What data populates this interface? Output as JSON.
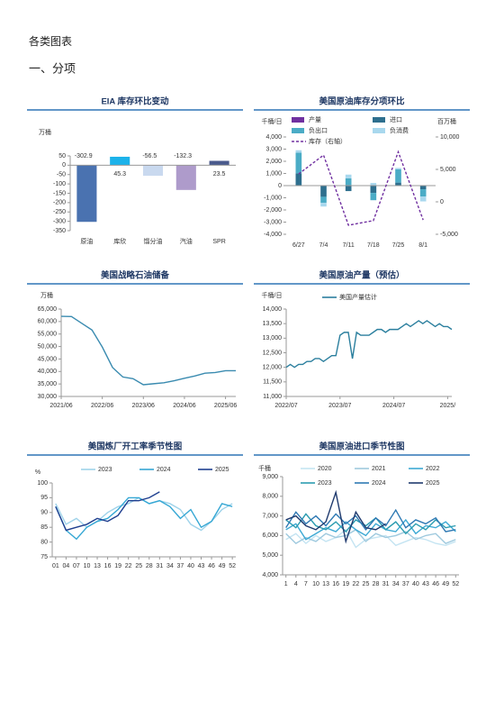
{
  "header": {
    "title": "各类图表",
    "section": "一、分项"
  },
  "chart_data": [
    {
      "type": "bar",
      "title": "EIA 库存环比变动",
      "y_label": "万桶",
      "categories": [
        "原油",
        "库欣",
        "馏分油",
        "汽油",
        "SPR"
      ],
      "values": [
        -302.9,
        45.3,
        -56.5,
        -132.3,
        23.5
      ],
      "colors": [
        "#4a72b0",
        "#1cb2ea",
        "#c9d9ef",
        "#ae9bcb",
        "#4a5a8c"
      ],
      "ylim": [
        -350,
        50
      ],
      "yticks": [
        -350,
        -300,
        -250,
        -200,
        -150,
        -100,
        -50,
        0,
        50
      ]
    },
    {
      "type": "combo",
      "title": "美国原油库存分项环比",
      "y_label": "千桶/日",
      "y2_label": "百万桶",
      "categories": [
        "6/27",
        "7/4",
        "7/11",
        "7/18",
        "7/25",
        "8/1"
      ],
      "series": [
        {
          "name": "产量",
          "type": "bar",
          "color": "#7030a0",
          "values": [
            10,
            -20,
            5,
            15,
            -10,
            20
          ]
        },
        {
          "name": "进口",
          "type": "bar",
          "color": "#2e6f8e",
          "values": [
            1000,
            -900,
            -450,
            -600,
            250,
            -300
          ]
        },
        {
          "name": "负出口",
          "type": "bar",
          "color": "#4bacc6",
          "values": [
            1700,
            -500,
            600,
            -600,
            1100,
            -600
          ]
        },
        {
          "name": "负消费",
          "type": "bar",
          "color": "#a9d8ee",
          "values": [
            200,
            -300,
            300,
            200,
            100,
            -400
          ]
        },
        {
          "name": "库存（右轴）",
          "type": "line",
          "linestyle": "dashed",
          "axis": "y2",
          "color": "#7030a0",
          "values": [
            4300,
            7200,
            -3600,
            -2900,
            7700,
            -2800
          ]
        }
      ],
      "ylim": [
        -4000,
        4000
      ],
      "yticks": [
        {
          "value": -4000,
          "label": "-4,000"
        },
        {
          "value": -3000,
          "label": "-3,000"
        },
        {
          "value": -2000,
          "label": "-2,000"
        },
        {
          "value": -1000,
          "label": "-1,000"
        },
        0,
        {
          "value": 1000,
          "label": "1,000"
        },
        {
          "value": 2000,
          "label": "2,000"
        },
        {
          "value": 3000,
          "label": "3,000"
        },
        {
          "value": 4000,
          "label": "4,000"
        }
      ],
      "y2lim": [
        -5000,
        10000
      ],
      "y2ticks": [
        {
          "value": -5000,
          "label": "-5,000"
        },
        0,
        {
          "value": 5000,
          "label": "5,000"
        },
        {
          "value": 10000,
          "label": "10,000"
        }
      ]
    },
    {
      "type": "line",
      "title": "美国战略石油储备",
      "y_label": "万桶",
      "color": "#3a8bb0",
      "categories": [
        "2021/06",
        null,
        null,
        null,
        "2022/06",
        null,
        null,
        null,
        "2023/06",
        null,
        null,
        null,
        "2024/06",
        null,
        null,
        null,
        "2025/06",
        null
      ],
      "values": [
        62100,
        62000,
        59300,
        56600,
        49800,
        41600,
        37800,
        37100,
        34700,
        35100,
        35500,
        36300,
        37300,
        38200,
        39300,
        39600,
        40300,
        40300
      ],
      "ylim": [
        30000,
        65000
      ],
      "yticks": [
        {
          "value": 30000,
          "label": "30,000"
        },
        {
          "value": 35000,
          "label": "35,000"
        },
        {
          "value": 40000,
          "label": "40,000"
        },
        {
          "value": 45000,
          "label": "45,000"
        },
        {
          "value": 50000,
          "label": "50,000"
        },
        {
          "value": 55000,
          "label": "55,000"
        },
        {
          "value": 60000,
          "label": "60,000"
        },
        {
          "value": 65000,
          "label": "65,000"
        }
      ]
    },
    {
      "type": "line",
      "title": "美国原油产量（预估）",
      "y_label": "千桶/日",
      "categories": [
        "2022/07",
        null,
        null,
        null,
        null,
        null,
        null,
        null,
        null,
        null,
        null,
        null,
        null,
        "2023/07",
        null,
        null,
        null,
        null,
        null,
        null,
        null,
        null,
        null,
        null,
        null,
        null,
        "2024/07",
        null,
        null,
        null,
        null,
        null,
        null,
        null,
        null,
        null,
        null,
        null,
        null,
        "2025/",
        null
      ],
      "series": [
        {
          "name": "美国产量估计",
          "color": "#2b7f9e",
          "values": [
            12000,
            12100,
            12000,
            12100,
            12100,
            12200,
            12200,
            12300,
            12300,
            12200,
            12300,
            12400,
            12400,
            13100,
            13200,
            13200,
            12300,
            13200,
            13100,
            13100,
            13100,
            13200,
            13300,
            13300,
            13200,
            13300,
            13300,
            13300,
            13400,
            13500,
            13400,
            13500,
            13600,
            13500,
            13600,
            13500,
            13400,
            13500,
            13400,
            13400,
            13300
          ]
        }
      ],
      "ylim": [
        11000,
        14000
      ],
      "yticks": [
        {
          "value": 11000,
          "label": "11,000"
        },
        {
          "value": 11500,
          "label": "11,500"
        },
        {
          "value": 12000,
          "label": "12,000"
        },
        {
          "value": 12500,
          "label": "12,500"
        },
        {
          "value": 13000,
          "label": "13,000"
        },
        {
          "value": 13500,
          "label": "13,500"
        },
        {
          "value": 14000,
          "label": "14,000"
        }
      ]
    },
    {
      "type": "line",
      "title": "美国炼厂开工率季节性图",
      "y_label": "%",
      "x": [
        1,
        4,
        7,
        10,
        13,
        16,
        19,
        22,
        25,
        28,
        31,
        34,
        37,
        40,
        43,
        46,
        49,
        52
      ],
      "series": [
        {
          "name": "2023",
          "color": "#9fd3ea",
          "values": [
            93,
            86,
            88,
            85,
            87,
            90,
            92,
            93,
            95,
            93,
            94,
            93,
            91,
            86,
            84,
            87,
            91,
            93
          ]
        },
        {
          "name": "2024",
          "color": "#35a7d4",
          "values": [
            92,
            84,
            81,
            85,
            87,
            88,
            91,
            95,
            95,
            93,
            94,
            92,
            88,
            91,
            85,
            87,
            93,
            92
          ]
        },
        {
          "name": "2025",
          "color": "#1f3f8f",
          "values": [
            92,
            84,
            85,
            86,
            88,
            87,
            89,
            94,
            94,
            95,
            97,
            null,
            null,
            null,
            null,
            null,
            null,
            null
          ]
        }
      ],
      "xlim": [
        0,
        53
      ],
      "xticks": [
        {
          "value": 1,
          "label": "01"
        },
        {
          "value": 4,
          "label": "04"
        },
        {
          "value": 7,
          "label": "07"
        },
        10,
        13,
        16,
        19,
        22,
        25,
        28,
        31,
        34,
        37,
        40,
        43,
        46,
        49,
        52
      ],
      "ylim": [
        75,
        100
      ],
      "yticks": [
        75,
        80,
        85,
        90,
        95,
        100
      ]
    },
    {
      "type": "line",
      "title": "美国原油进口季节性图",
      "y_label": "千桶",
      "x": [
        1,
        4,
        7,
        10,
        13,
        16,
        19,
        22,
        25,
        28,
        31,
        34,
        37,
        40,
        43,
        46,
        49,
        52
      ],
      "series": [
        {
          "name": "2020",
          "color": "#c4e4f2",
          "values": [
            5800,
            6100,
            5600,
            6000,
            5700,
            5900,
            6300,
            5400,
            5800,
            5900,
            6000,
            5500,
            5700,
            5900,
            5800,
            5600,
            5500,
            5700
          ]
        },
        {
          "name": "2021",
          "color": "#9ec9de",
          "values": [
            6100,
            5600,
            5900,
            5700,
            6100,
            5900,
            6000,
            6300,
            5700,
            6100,
            5900,
            6000,
            6200,
            5800,
            6000,
            6100,
            5600,
            5800
          ]
        },
        {
          "name": "2022",
          "color": "#3da9d4",
          "values": [
            6300,
            6600,
            5800,
            6100,
            6400,
            6200,
            6700,
            6300,
            6000,
            6600,
            6300,
            6200,
            6800,
            6100,
            6500,
            6400,
            6700,
            6200
          ]
        },
        {
          "name": "2023",
          "color": "#2b9cb0",
          "values": [
            6800,
            6400,
            7100,
            6500,
            6300,
            6700,
            6200,
            6800,
            6500,
            6900,
            6300,
            6700,
            6100,
            6600,
            6300,
            6800,
            6400,
            6500
          ]
        },
        {
          "name": "2024",
          "color": "#2e79b3",
          "values": [
            6400,
            7200,
            6600,
            7000,
            6500,
            7100,
            6600,
            7000,
            6300,
            6900,
            6500,
            7300,
            6400,
            6800,
            6600,
            6900,
            6200,
            6300
          ]
        },
        {
          "name": "2025",
          "color": "#1f3a6e",
          "values": [
            6800,
            7000,
            6500,
            6300,
            6700,
            8200,
            5700,
            7200,
            6400,
            6300,
            6600,
            null,
            null,
            null,
            null,
            null,
            null,
            null
          ]
        }
      ],
      "xlim": [
        0,
        53
      ],
      "xticks": [
        1,
        4,
        7,
        10,
        13,
        16,
        19,
        22,
        25,
        28,
        31,
        34,
        37,
        40,
        43,
        46,
        49,
        52
      ],
      "ylim": [
        4000,
        9000
      ],
      "yticks": [
        {
          "value": 4000,
          "label": "4,000"
        },
        {
          "value": 5000,
          "label": "5,000"
        },
        {
          "value": 6000,
          "label": "6,000"
        },
        {
          "value": 7000,
          "label": "7,000"
        },
        {
          "value": 8000,
          "label": "8,000"
        },
        {
          "value": 9000,
          "label": "9,000"
        }
      ]
    }
  ]
}
